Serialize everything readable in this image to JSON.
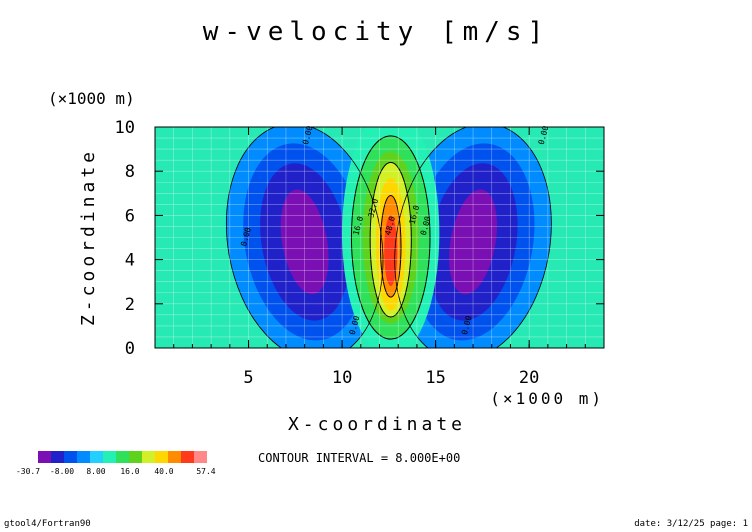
{
  "chart_data": {
    "type": "heatmap",
    "title": "w-velocity [m/s]",
    "xlabel": "X-coordinate",
    "ylabel": "Z-coordinate",
    "x_unit": "(×1000 m)",
    "y_unit": "(×1000 m)",
    "xlim": [
      0,
      24
    ],
    "ylim": [
      0,
      10
    ],
    "x_ticks": [
      "5",
      "10",
      "15",
      "20"
    ],
    "y_ticks": [
      "0",
      "2",
      "4",
      "6",
      "8",
      "10"
    ],
    "x_tick_values": [
      5,
      10,
      15,
      20
    ],
    "y_tick_values": [
      0,
      2,
      4,
      6,
      8,
      10
    ],
    "grid": true,
    "contour_interval_label": "CONTOUR INTERVAL = 8.000E+00",
    "contour_labels": [
      {
        "text": "0.00",
        "x": 5.0,
        "y": 5.0
      },
      {
        "text": "0.00",
        "x": 8.3,
        "y": 9.6
      },
      {
        "text": "0.00",
        "x": 10.8,
        "y": 1.0
      },
      {
        "text": "0.00",
        "x": 14.6,
        "y": 5.5
      },
      {
        "text": "0.00",
        "x": 16.8,
        "y": 1.0
      },
      {
        "text": "0.00",
        "x": 20.9,
        "y": 9.6
      },
      {
        "text": "16.0",
        "x": 11.0,
        "y": 5.5
      },
      {
        "text": "16.0",
        "x": 14.0,
        "y": 6.0
      },
      {
        "text": "32.0",
        "x": 11.8,
        "y": 6.3
      },
      {
        "text": "48.0",
        "x": 12.7,
        "y": 5.5
      }
    ],
    "colorbar": {
      "colors": [
        "#7a0fb3",
        "#2121c9",
        "#0052ee",
        "#008cff",
        "#21d0ff",
        "#22f0b4",
        "#2fe05a",
        "#5fd21e",
        "#d2f028",
        "#ffd700",
        "#ff8c00",
        "#ff3a1a",
        "#ff8888"
      ],
      "labels": [
        "-30.7",
        "-8.00",
        "8.00",
        "16.0",
        "40.0",
        "57.4"
      ],
      "background_color": "#26e9b3"
    }
  },
  "footer": {
    "left": "gtool4/Fortran90",
    "right": "date: 3/12/25 page: 1"
  }
}
